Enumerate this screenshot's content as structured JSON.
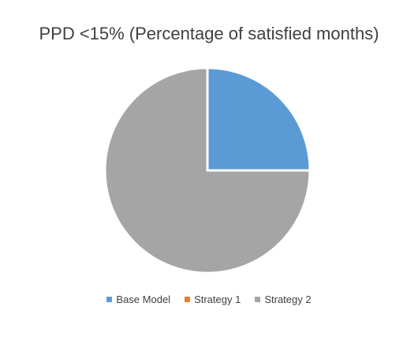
{
  "chart_data": {
    "type": "pie",
    "title": "PPD <15% (Percentage of satisfied months)",
    "categories": [
      "Base Model",
      "Strategy 1",
      "Strategy 2"
    ],
    "values": [
      25,
      0,
      75
    ],
    "colors": [
      "#5B9BD5",
      "#ED7D31",
      "#A5A5A5"
    ],
    "start_angle_deg": 0,
    "direction": "clockwise",
    "legend": "bottom"
  }
}
